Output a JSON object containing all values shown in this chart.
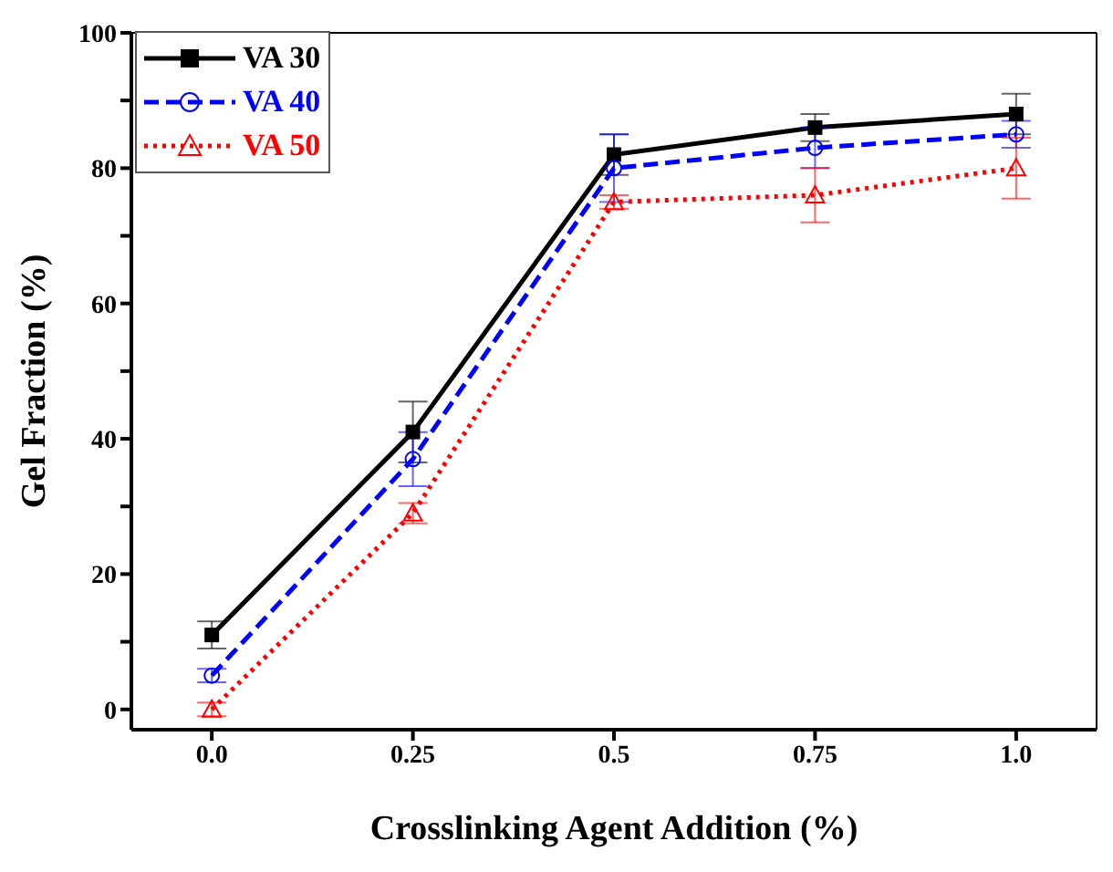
{
  "chart_data": {
    "type": "line",
    "xlabel": "Crosslinking Agent Addition (%)",
    "ylabel": "Gel Fraction (%)",
    "x": [
      0,
      0.25,
      0.5,
      0.75,
      1.0
    ],
    "xlim": [
      -0.1,
      1.1
    ],
    "xticks": [
      {
        "value": 0,
        "label": "0.0"
      },
      0.25,
      0.5,
      0.75,
      {
        "value": 1.0,
        "label": "1.0"
      }
    ],
    "ylim": [
      -3,
      100
    ],
    "yticks": [
      0,
      {
        "value": 10,
        "label": null
      },
      20,
      {
        "value": 30,
        "label": null
      },
      40,
      {
        "value": 50,
        "label": null
      },
      60,
      {
        "value": 70,
        "label": null
      },
      80,
      {
        "value": 90,
        "label": null
      },
      100
    ],
    "grid": false,
    "legend": "top left",
    "series": [
      {
        "name": "VA 30",
        "color": "#000000",
        "marker": "square",
        "line_style": "solid",
        "values": [
          11,
          41,
          82,
          86,
          88
        ],
        "errors": [
          2,
          4.5,
          3,
          2,
          3
        ]
      },
      {
        "name": "VA 40",
        "color": "#0000ff",
        "marker": "circle",
        "line_style": "dashed",
        "values": [
          5,
          37,
          80,
          83,
          85
        ],
        "errors": [
          1,
          4,
          5,
          3,
          2
        ]
      },
      {
        "name": "VA 50",
        "color": "#ff0000",
        "marker": "triangle",
        "line_style": "dotted",
        "values": [
          0,
          29,
          75,
          76,
          80
        ],
        "errors": [
          1,
          1.5,
          1,
          4,
          4.5
        ]
      }
    ]
  }
}
